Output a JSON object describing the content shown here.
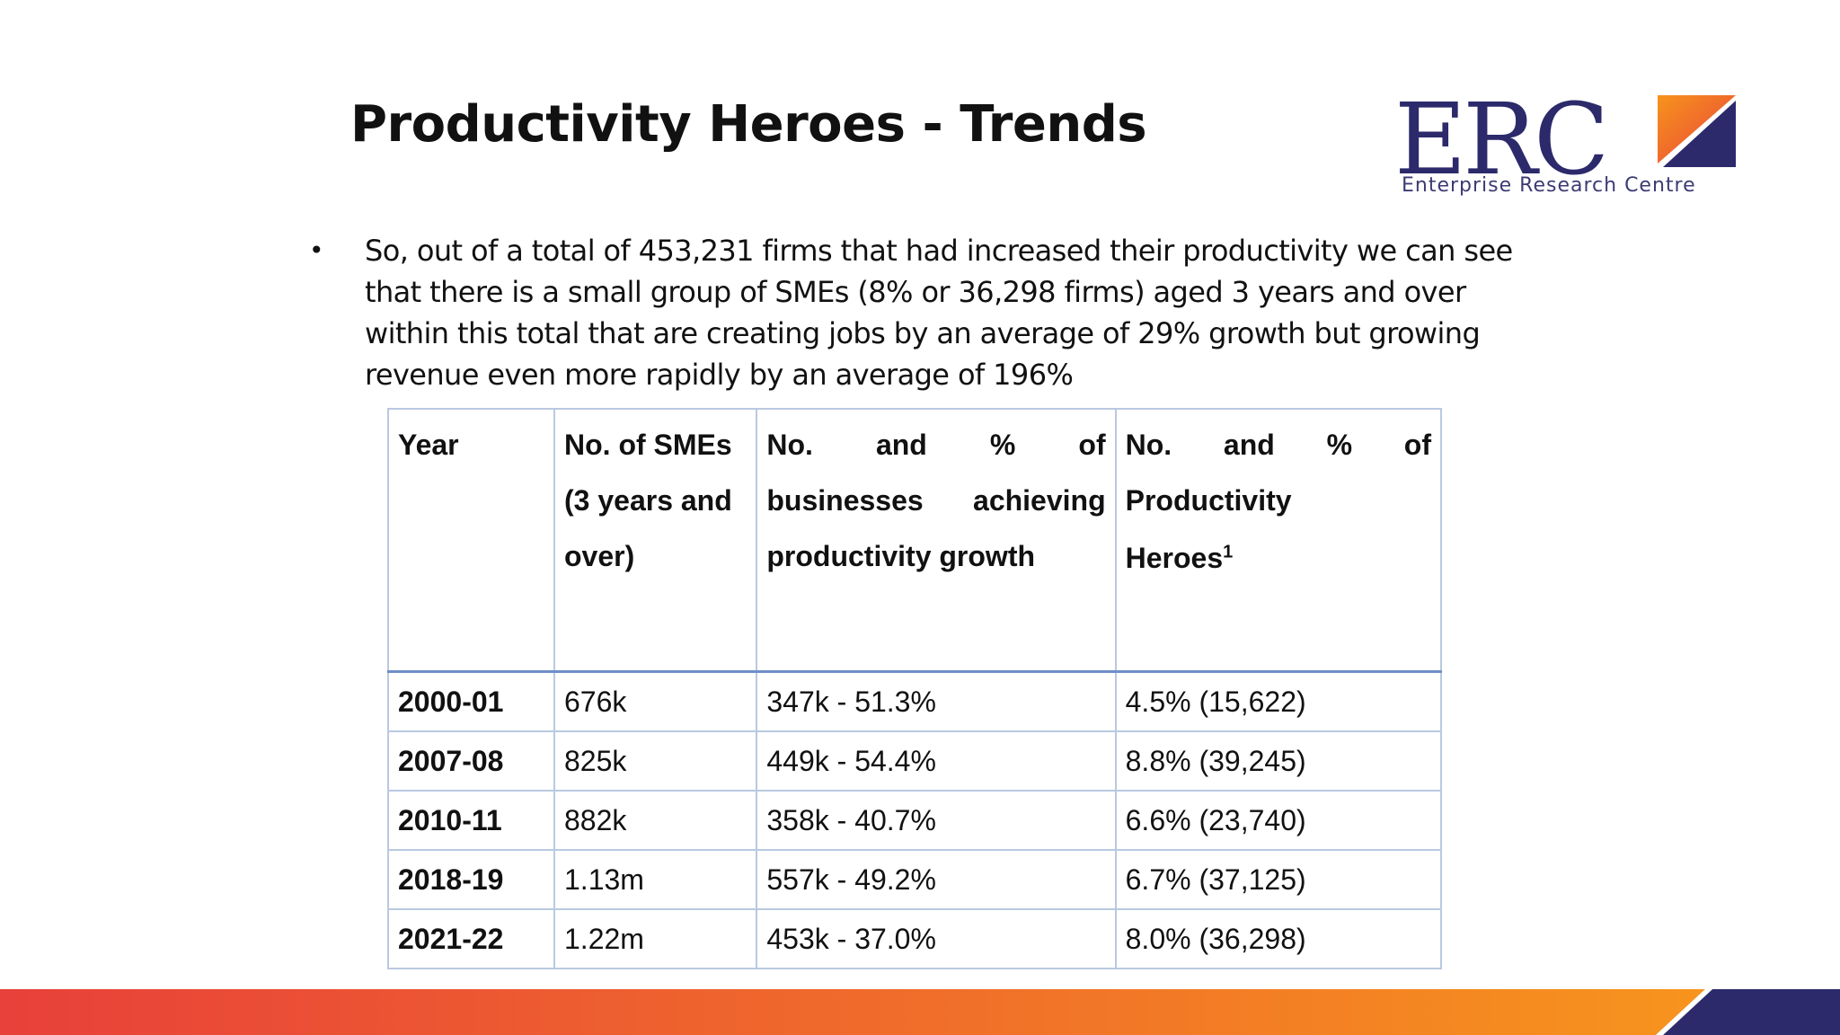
{
  "slide": {
    "title": "Productivity Heroes - Trends",
    "bullet_text": "So, out of a total of 453,231 firms that had increased their productivity we can see that there is a small group of SMEs (8% or 36,298 firms) aged 3 years and over within this total that are creating jobs by an average of 29% growth but growing revenue even more rapidly by an average of 196%"
  },
  "logo": {
    "letters": "ERC",
    "subtitle": "Enterprise Research Centre"
  },
  "table": {
    "headers": {
      "year": "Year",
      "smes_line1": "No. of SMEs",
      "smes_line2": "(3 years and over)",
      "biz_words": [
        "No.",
        "and",
        "%",
        "of"
      ],
      "biz_rest_words": [
        "businesses",
        "achieving"
      ],
      "biz_last": "productivity growth",
      "heroes_words": [
        "No.",
        "and",
        "%",
        "of"
      ],
      "heroes_line2": "Productivity",
      "heroes_line3": "Heroes",
      "heroes_sup": "1"
    },
    "rows": [
      {
        "year": "2000-01",
        "smes": "676k",
        "businesses": "347k - 51.3%",
        "heroes": "4.5% (15,622)"
      },
      {
        "year": "2007-08",
        "smes": "825k",
        "businesses": "449k - 54.4%",
        "heroes": "8.8% (39,245)"
      },
      {
        "year": "2010-11",
        "smes": "882k",
        "businesses": "358k - 40.7%",
        "heroes": "6.6% (23,740)"
      },
      {
        "year": "2018-19",
        "smes": "1.13m",
        "businesses": "557k - 49.2%",
        "heroes": "6.7% (37,125)"
      },
      {
        "year": "2021-22",
        "smes": "1.22m",
        "businesses": "453k - 37.0%",
        "heroes": "8.0% (36,298)"
      }
    ]
  },
  "colors": {
    "brand_navy": "#2c2a6b",
    "brand_orange": "#f26b21",
    "footer_start": "#e8403a",
    "footer_end": "#f7941d",
    "table_border": "#b9c9e0"
  }
}
